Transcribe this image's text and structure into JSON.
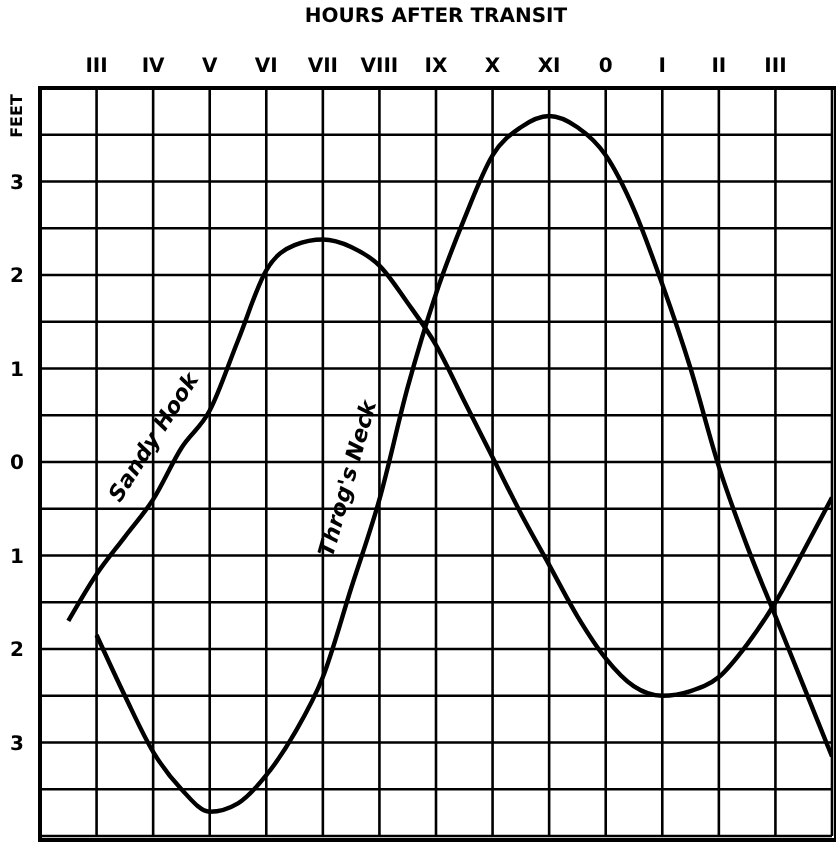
{
  "chart_data": {
    "type": "line",
    "xlabel": "HOURS AFTER TRANSIT",
    "ylabel": "FEET",
    "ylim": [
      -4,
      4
    ],
    "categories": [
      null,
      null,
      "III",
      null,
      "IV",
      null,
      "V",
      null,
      "VI",
      null,
      "VII",
      null,
      "VIII",
      null,
      "IX",
      null,
      "X",
      null,
      "XI",
      null,
      "0",
      null,
      "I",
      null,
      "II",
      null,
      "III",
      null,
      null
    ],
    "yticks": [
      {
        "value": -3.5,
        "label": null
      },
      {
        "value": -3,
        "label": "3"
      },
      {
        "value": -2.5,
        "label": null
      },
      {
        "value": -2,
        "label": "2"
      },
      {
        "value": -1.5,
        "label": null
      },
      {
        "value": -1,
        "label": "1"
      },
      {
        "value": -0.5,
        "label": null
      },
      0,
      {
        "value": 0.5,
        "label": null
      },
      1,
      {
        "value": 1.5,
        "label": null
      },
      2,
      {
        "value": 2.5,
        "label": null
      },
      3,
      {
        "value": 3.5,
        "label": null
      }
    ],
    "grid": true,
    "marker": "none",
    "line_style": "solid",
    "series": [
      {
        "name": "Sandy Hook",
        "color": "#000000",
        "values": [
          null,
          -1.7,
          -1.2,
          -0.8,
          -0.4,
          0.15,
          0.55,
          1.3,
          2.05,
          2.32,
          2.38,
          2.3,
          2.1,
          1.7,
          1.25,
          0.65,
          0.05,
          -0.55,
          -1.1,
          -1.65,
          -2.1,
          -2.4,
          -2.5,
          -2.45,
          -2.3,
          -1.95,
          -1.5,
          -0.95,
          -0.38
        ]
      },
      {
        "name": "Throg's Neck",
        "color": "#000000",
        "values": [
          null,
          null,
          -1.85,
          -2.5,
          -3.1,
          -3.5,
          -3.74,
          -3.65,
          -3.35,
          -2.9,
          -2.3,
          -1.35,
          -0.4,
          0.8,
          1.8,
          2.6,
          3.28,
          3.58,
          3.7,
          3.58,
          3.28,
          2.7,
          1.9,
          1.0,
          -0.05,
          -0.9,
          -1.65,
          -2.4,
          -3.15
        ]
      }
    ]
  }
}
